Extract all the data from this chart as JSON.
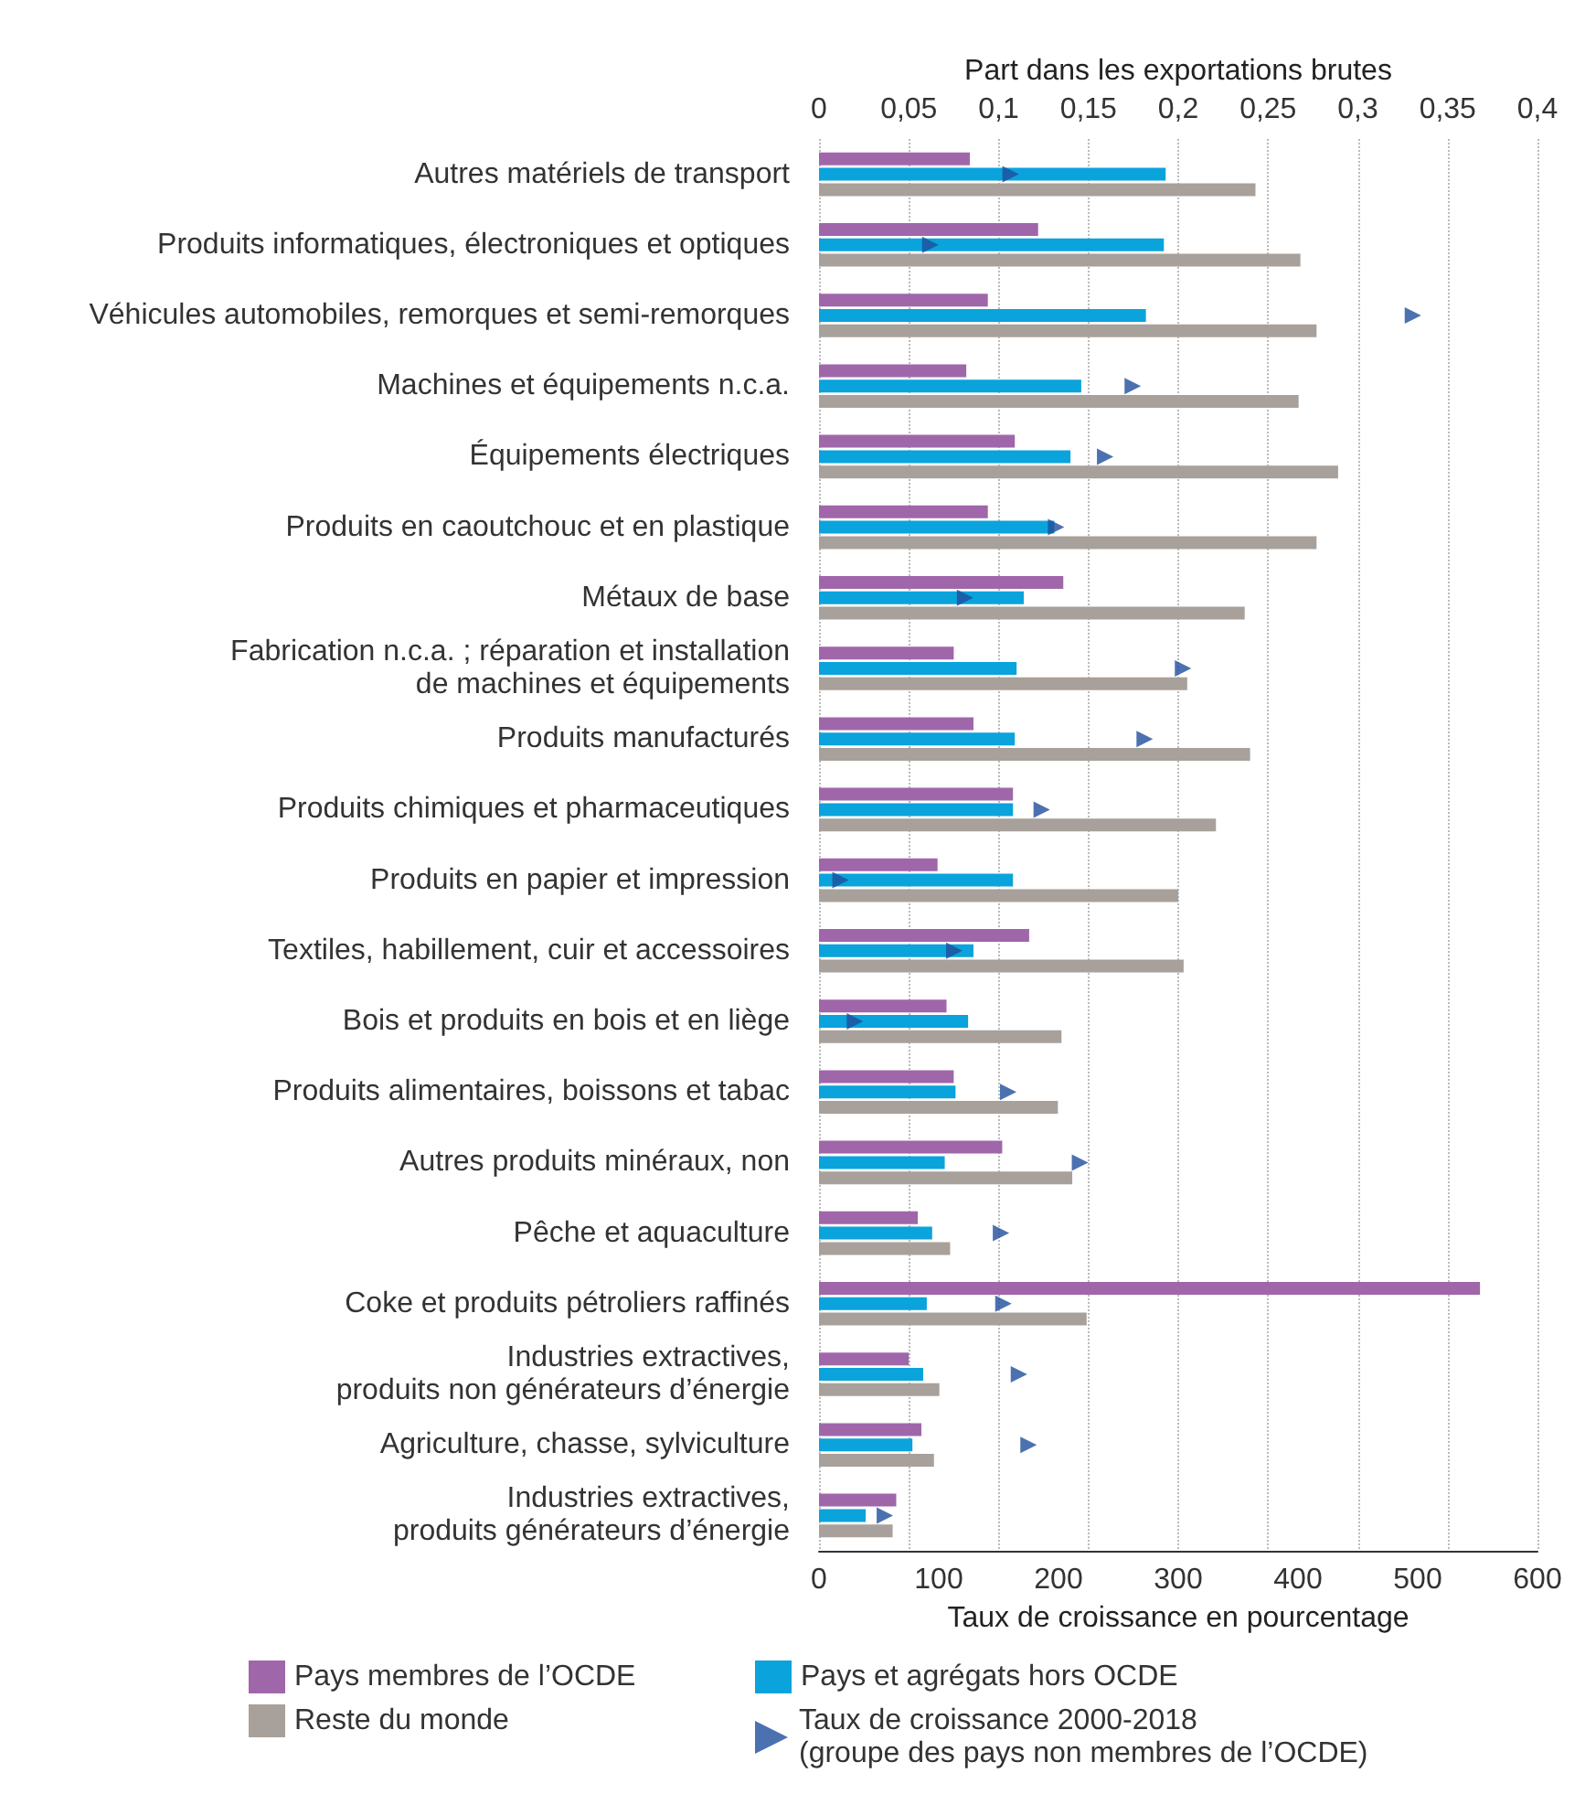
{
  "chart_data": {
    "type": "bar",
    "orientation": "horizontal",
    "x2label": "Part dans les exportations brutes",
    "xlabel": "Taux de croissance en pourcentage",
    "categories": [
      "Autres matériels de transport",
      "Produits informatiques, électroniques et optiques",
      "Véhicules automobiles, remorques et semi-remorques",
      "Machines et équipements n.c.a.",
      "Équipements électriques",
      "Produits en caoutchouc et en plastique",
      "Métaux de base",
      "Fabrication n.c.a. ; réparation et installation\nde machines et équipements",
      "Produits manufacturés",
      "Produits chimiques et pharmaceutiques",
      "Produits en papier et impression",
      "Textiles, habillement, cuir et accessoires",
      "Bois et produits en bois et en liège",
      "Produits alimentaires, boissons et tabac",
      "Autres produits minéraux, non",
      "Pêche et aquaculture",
      "Coke et produits pétroliers raffinés",
      "Industries extractives,\nproduits non générateurs d’énergie",
      "Agriculture, chasse, sylviculture",
      "Industries extractives,\nproduits générateurs d’énergie"
    ],
    "series": [
      {
        "name": "Pays membres de l’OCDE",
        "color": "#a066aa",
        "axis": "x2",
        "values": [
          0.084,
          0.122,
          0.094,
          0.082,
          0.109,
          0.094,
          0.136,
          0.075,
          0.086,
          0.108,
          0.066,
          0.117,
          0.071,
          0.075,
          0.102,
          0.055,
          0.368,
          0.05,
          0.057,
          0.043
        ]
      },
      {
        "name": "Pays et agrégats hors OCDE",
        "color": "#0aa3dc",
        "axis": "x2",
        "values": [
          0.193,
          0.192,
          0.182,
          0.146,
          0.14,
          0.131,
          0.114,
          0.11,
          0.109,
          0.108,
          0.108,
          0.086,
          0.083,
          0.076,
          0.07,
          0.063,
          0.06,
          0.058,
          0.052,
          0.026
        ]
      },
      {
        "name": "Reste du monde",
        "color": "#a8a09a",
        "axis": "x2",
        "values": [
          0.243,
          0.268,
          0.277,
          0.267,
          0.289,
          0.277,
          0.237,
          0.205,
          0.24,
          0.221,
          0.2,
          0.203,
          0.135,
          0.133,
          0.141,
          0.073,
          0.149,
          0.067,
          0.064,
          0.041
        ]
      },
      {
        "name": "Taux de croissance 2000-2018\n(groupe des pays non membres de l’OCDE)",
        "color": "#1f4e9c",
        "type": "scatter",
        "marker": "triangle",
        "values": [
          160,
          93,
          496,
          262,
          239,
          198,
          122,
          304,
          272,
          186,
          18,
          113,
          30,
          158,
          218,
          152,
          154,
          167,
          175,
          55
        ]
      }
    ],
    "x2lim": [
      0,
      0.4
    ],
    "x2ticks": [
      0,
      {
        "value": 0.05,
        "label": "0,05"
      },
      {
        "value": 0.1,
        "label": "0,1"
      },
      {
        "value": 0.15,
        "label": "0,15"
      },
      {
        "value": 0.2,
        "label": "0,2"
      },
      {
        "value": 0.25,
        "label": "0,25"
      },
      {
        "value": 0.3,
        "label": "0,3"
      },
      {
        "value": 0.35,
        "label": "0,35"
      },
      {
        "value": 0.4,
        "label": "0,4"
      }
    ],
    "xlim": [
      0,
      600
    ],
    "xticks": [
      0,
      100,
      200,
      300,
      400,
      500,
      600
    ],
    "grid": "x",
    "legend": "bottom"
  }
}
